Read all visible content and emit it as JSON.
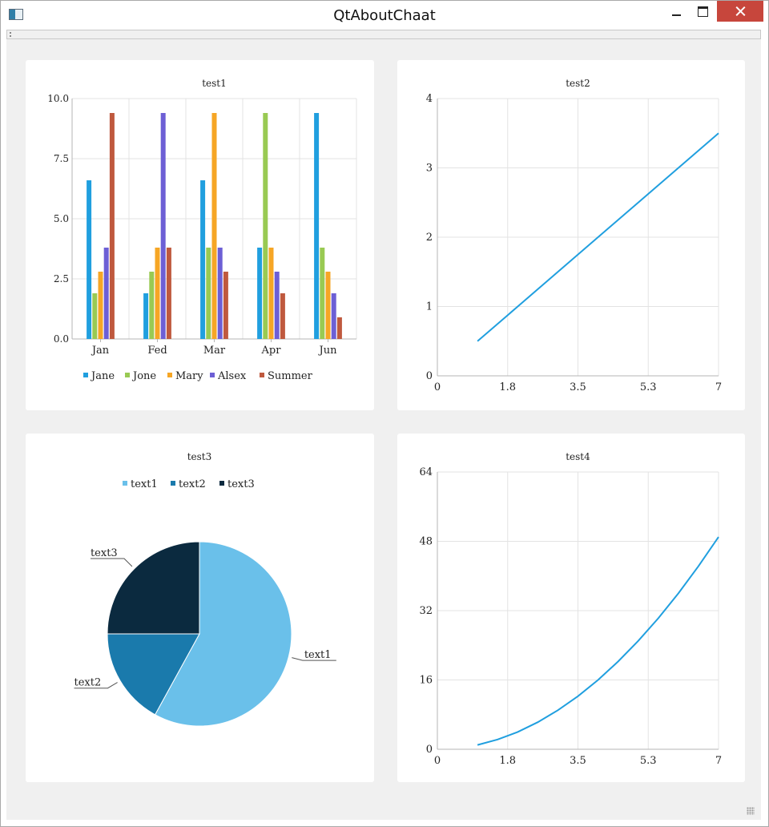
{
  "window": {
    "title": "QtAboutChaat"
  },
  "colors": {
    "series": [
      "#209fdf",
      "#99ca53",
      "#f6a625",
      "#6d5fd5",
      "#bf593e"
    ],
    "pie": [
      "#6ac0ea",
      "#1a7aac",
      "#0b2a3f"
    ],
    "line": "#209fdf",
    "grid": "#e3e3e3",
    "axis": "#b5b5b5",
    "text": "#222222"
  },
  "chart_data": [
    {
      "type": "bar",
      "title": "test1",
      "categories": [
        "Jan",
        "Fed",
        "Mar",
        "Apr",
        "Jun"
      ],
      "series": [
        {
          "name": "Jane",
          "values": [
            6.6,
            1.9,
            6.6,
            3.8,
            9.4
          ]
        },
        {
          "name": "Jone",
          "values": [
            1.9,
            2.8,
            3.8,
            9.4,
            3.8
          ]
        },
        {
          "name": "Mary",
          "values": [
            2.8,
            3.8,
            9.4,
            3.8,
            2.8
          ]
        },
        {
          "name": "Alsex",
          "values": [
            3.8,
            9.4,
            3.8,
            2.8,
            1.9
          ]
        },
        {
          "name": "Summer",
          "values": [
            9.4,
            3.8,
            2.8,
            1.9,
            0.9
          ]
        }
      ],
      "ylim": [
        0,
        10
      ],
      "yticks": [
        "0.0",
        "2.5",
        "5.0",
        "7.5",
        "10.0"
      ],
      "legend": "bottom",
      "grid": true
    },
    {
      "type": "line",
      "title": "test2",
      "x": [
        1,
        7
      ],
      "y": [
        0.5,
        3.5
      ],
      "xlim": [
        0,
        7
      ],
      "ylim": [
        0,
        4
      ],
      "xticks": [
        "0",
        "1.8",
        "3.5",
        "5.3",
        "7"
      ],
      "yticks": [
        "0",
        "1",
        "2",
        "3",
        "4"
      ],
      "grid": true
    },
    {
      "type": "pie",
      "title": "test3",
      "slices": [
        {
          "label": "text1",
          "value": 58
        },
        {
          "label": "text2",
          "value": 17
        },
        {
          "label": "text3",
          "value": 25
        }
      ],
      "legend": "top"
    },
    {
      "type": "line",
      "title": "test4",
      "x": [
        1,
        1.5,
        2,
        2.5,
        3,
        3.5,
        4,
        4.5,
        5,
        5.5,
        6,
        6.5,
        7
      ],
      "y": [
        1,
        2.25,
        4,
        6.25,
        9,
        12.25,
        16,
        20.25,
        25,
        30.25,
        36,
        42.25,
        49
      ],
      "xlim": [
        0,
        7
      ],
      "ylim": [
        0,
        64
      ],
      "xticks": [
        "0",
        "1.8",
        "3.5",
        "5.3",
        "7"
      ],
      "yticks": [
        "0",
        "16",
        "32",
        "48",
        "64"
      ],
      "grid": true
    }
  ]
}
